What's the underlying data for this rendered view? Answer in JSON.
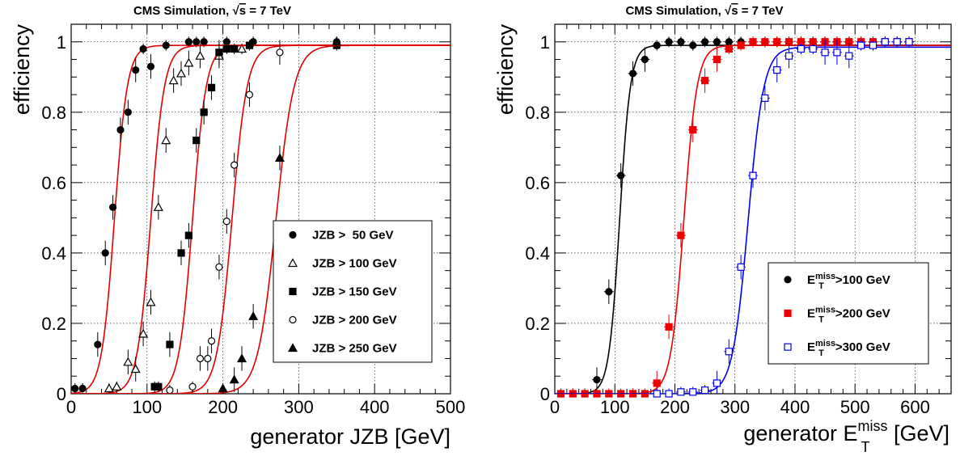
{
  "chart_data": [
    {
      "type": "scatter",
      "title_prefix": "CMS Simulation, ",
      "title_sqrt": "s",
      "title_suffix": " = 7 TeV",
      "xlabel": "generator JZB [GeV]",
      "ylabel": "efficiency",
      "xlim": [
        0,
        500
      ],
      "ylim": [
        0,
        1.05
      ],
      "xticks": [
        0,
        100,
        200,
        300,
        400,
        500
      ],
      "yticks": [
        0,
        0.2,
        0.4,
        0.6,
        0.8,
        1
      ],
      "grid": true,
      "legend_position": "right",
      "series": [
        {
          "name": "JZB >  50 GeV",
          "marker": "circle-filled",
          "color": "#000000",
          "fit": {
            "midpoint": 57,
            "width": 8.5,
            "plateau": 0.99
          },
          "points": [
            [
              5,
              0.015
            ],
            [
              15,
              0.015
            ],
            [
              35,
              0.14
            ],
            [
              45,
              0.4
            ],
            [
              55,
              0.53
            ],
            [
              65,
              0.75
            ],
            [
              75,
              0.8
            ],
            [
              85,
              0.92
            ],
            [
              95,
              0.98
            ],
            [
              105,
              0.93
            ],
            [
              125,
              0.99
            ],
            [
              155,
              1.0
            ],
            [
              165,
              1.0
            ],
            [
              175,
              1.0
            ],
            [
              205,
              1.0
            ],
            [
              240,
              1.0
            ],
            [
              350,
              1.0
            ]
          ]
        },
        {
          "name": "JZB > 100 GeV",
          "marker": "triangle-open",
          "color": "#000000",
          "fit": {
            "midpoint": 105,
            "width": 9,
            "plateau": 0.99
          },
          "points": [
            [
              50,
              0.015
            ],
            [
              60,
              0.02
            ],
            [
              75,
              0.09
            ],
            [
              85,
              0.07
            ],
            [
              95,
              0.17
            ],
            [
              105,
              0.26
            ],
            [
              115,
              0.53
            ],
            [
              125,
              0.72
            ],
            [
              135,
              0.89
            ],
            [
              145,
              0.91
            ],
            [
              155,
              0.94
            ],
            [
              170,
              0.96
            ],
            [
              195,
              0.96
            ],
            [
              225,
              0.98
            ]
          ]
        },
        {
          "name": "JZB > 150 GeV",
          "marker": "square-filled",
          "color": "#000000",
          "fit": {
            "midpoint": 160,
            "width": 9,
            "plateau": 0.99
          },
          "points": [
            [
              110,
              0.02
            ],
            [
              115,
              0.02
            ],
            [
              130,
              0.14
            ],
            [
              145,
              0.4
            ],
            [
              155,
              0.45
            ],
            [
              165,
              0.72
            ],
            [
              175,
              0.8
            ],
            [
              185,
              0.87
            ],
            [
              195,
              0.97
            ],
            [
              205,
              0.98
            ],
            [
              215,
              0.98
            ],
            [
              235,
              0.99
            ],
            [
              350,
              0.99
            ]
          ]
        },
        {
          "name": "JZB > 200 GeV",
          "marker": "circle-open",
          "color": "#000000",
          "fit": {
            "midpoint": 212,
            "width": 10,
            "plateau": 0.99
          },
          "points": [
            [
              130,
              0.01
            ],
            [
              160,
              0.02
            ],
            [
              170,
              0.1
            ],
            [
              180,
              0.1
            ],
            [
              185,
              0.15
            ],
            [
              195,
              0.36
            ],
            [
              205,
              0.49
            ],
            [
              215,
              0.65
            ],
            [
              235,
              0.85
            ],
            [
              275,
              0.97
            ]
          ]
        },
        {
          "name": "JZB > 250 GeV",
          "marker": "triangle-filled",
          "color": "#000000",
          "fit": {
            "midpoint": 270,
            "width": 12,
            "plateau": 0.99
          },
          "points": [
            [
              200,
              0.015
            ],
            [
              215,
              0.04
            ],
            [
              225,
              0.1
            ],
            [
              240,
              0.22
            ],
            [
              275,
              0.67
            ],
            [
              350,
              1.0
            ]
          ]
        }
      ]
    },
    {
      "type": "scatter",
      "title_prefix": "CMS Simulation, ",
      "title_sqrt": "s",
      "title_suffix": " = 7 TeV",
      "xlabel_main": "generator E",
      "xlabel_sup": "miss",
      "xlabel_sub": "T",
      "xlabel_unit": " [GeV]",
      "ylabel": "efficiency",
      "xlim": [
        0,
        660
      ],
      "ylim": [
        0,
        1.05
      ],
      "xticks": [
        0,
        100,
        200,
        300,
        400,
        500,
        600
      ],
      "yticks": [
        0,
        0.2,
        0.4,
        0.6,
        0.8,
        1
      ],
      "grid": true,
      "legend_position": "right",
      "series": [
        {
          "name_main": "E",
          "name_sup": "miss",
          "name_sub": "T",
          "name_rest": ">100 GeV",
          "marker": "circle-filled",
          "color": "#000000",
          "fit": {
            "midpoint": 108,
            "width": 9,
            "plateau": 0.99
          },
          "points": [
            [
              10,
              0.0
            ],
            [
              30,
              0.0
            ],
            [
              50,
              0.0
            ],
            [
              70,
              0.04
            ],
            [
              90,
              0.29
            ],
            [
              110,
              0.62
            ],
            [
              130,
              0.91
            ],
            [
              150,
              0.95
            ],
            [
              170,
              0.99
            ],
            [
              190,
              1.0
            ],
            [
              210,
              1.0
            ],
            [
              230,
              0.99
            ],
            [
              250,
              1.0
            ],
            [
              270,
              1.0
            ],
            [
              290,
              1.0
            ],
            [
              310,
              1.0
            ],
            [
              330,
              1.0
            ],
            [
              350,
              1.0
            ],
            [
              370,
              1.0
            ],
            [
              390,
              1.0
            ],
            [
              410,
              1.0
            ],
            [
              430,
              1.0
            ],
            [
              450,
              1.0
            ],
            [
              470,
              1.0
            ],
            [
              490,
              1.0
            ],
            [
              510,
              1.0
            ],
            [
              530,
              1.0
            ],
            [
              550,
              1.0
            ],
            [
              570,
              1.0
            ],
            [
              590,
              1.0
            ]
          ]
        },
        {
          "name_main": "E",
          "name_sup": "miss",
          "name_sub": "T",
          "name_rest": ">200 GeV",
          "marker": "square-filled",
          "color": "#ee0000",
          "fit": {
            "midpoint": 215,
            "width": 11,
            "plateau": 0.99
          },
          "points": [
            [
              10,
              0.0
            ],
            [
              30,
              0.0
            ],
            [
              50,
              0.0
            ],
            [
              70,
              0.0
            ],
            [
              90,
              0.0
            ],
            [
              110,
              0.0
            ],
            [
              130,
              0.0
            ],
            [
              150,
              0.0
            ],
            [
              170,
              0.03
            ],
            [
              190,
              0.19
            ],
            [
              210,
              0.45
            ],
            [
              230,
              0.75
            ],
            [
              250,
              0.89
            ],
            [
              270,
              0.95
            ],
            [
              290,
              0.98
            ],
            [
              310,
              0.99
            ],
            [
              330,
              1.0
            ],
            [
              350,
              1.0
            ],
            [
              370,
              1.0
            ],
            [
              390,
              1.0
            ],
            [
              410,
              1.0
            ],
            [
              430,
              1.0
            ],
            [
              450,
              1.0
            ],
            [
              470,
              1.0
            ],
            [
              490,
              1.0
            ],
            [
              510,
              1.0
            ],
            [
              530,
              1.0
            ],
            [
              550,
              1.0
            ],
            [
              570,
              1.0
            ],
            [
              590,
              1.0
            ]
          ]
        },
        {
          "name_main": "E",
          "name_sup": "miss",
          "name_sub": "T",
          "name_rest": ">300 GeV",
          "marker": "square-open",
          "color": "#0000ee",
          "fit": {
            "midpoint": 322,
            "width": 13,
            "plateau": 0.985
          },
          "points": [
            [
              170,
              0.0
            ],
            [
              190,
              0.0
            ],
            [
              210,
              0.005
            ],
            [
              230,
              0.005
            ],
            [
              250,
              0.01
            ],
            [
              270,
              0.03
            ],
            [
              290,
              0.12
            ],
            [
              310,
              0.36
            ],
            [
              330,
              0.62
            ],
            [
              350,
              0.84
            ],
            [
              370,
              0.92
            ],
            [
              390,
              0.96
            ],
            [
              410,
              0.98
            ],
            [
              430,
              0.98
            ],
            [
              450,
              0.97
            ],
            [
              470,
              0.97
            ],
            [
              490,
              0.96
            ],
            [
              510,
              0.99
            ],
            [
              530,
              0.99
            ],
            [
              550,
              1.0
            ],
            [
              570,
              1.0
            ],
            [
              590,
              1.0
            ]
          ]
        }
      ]
    }
  ]
}
